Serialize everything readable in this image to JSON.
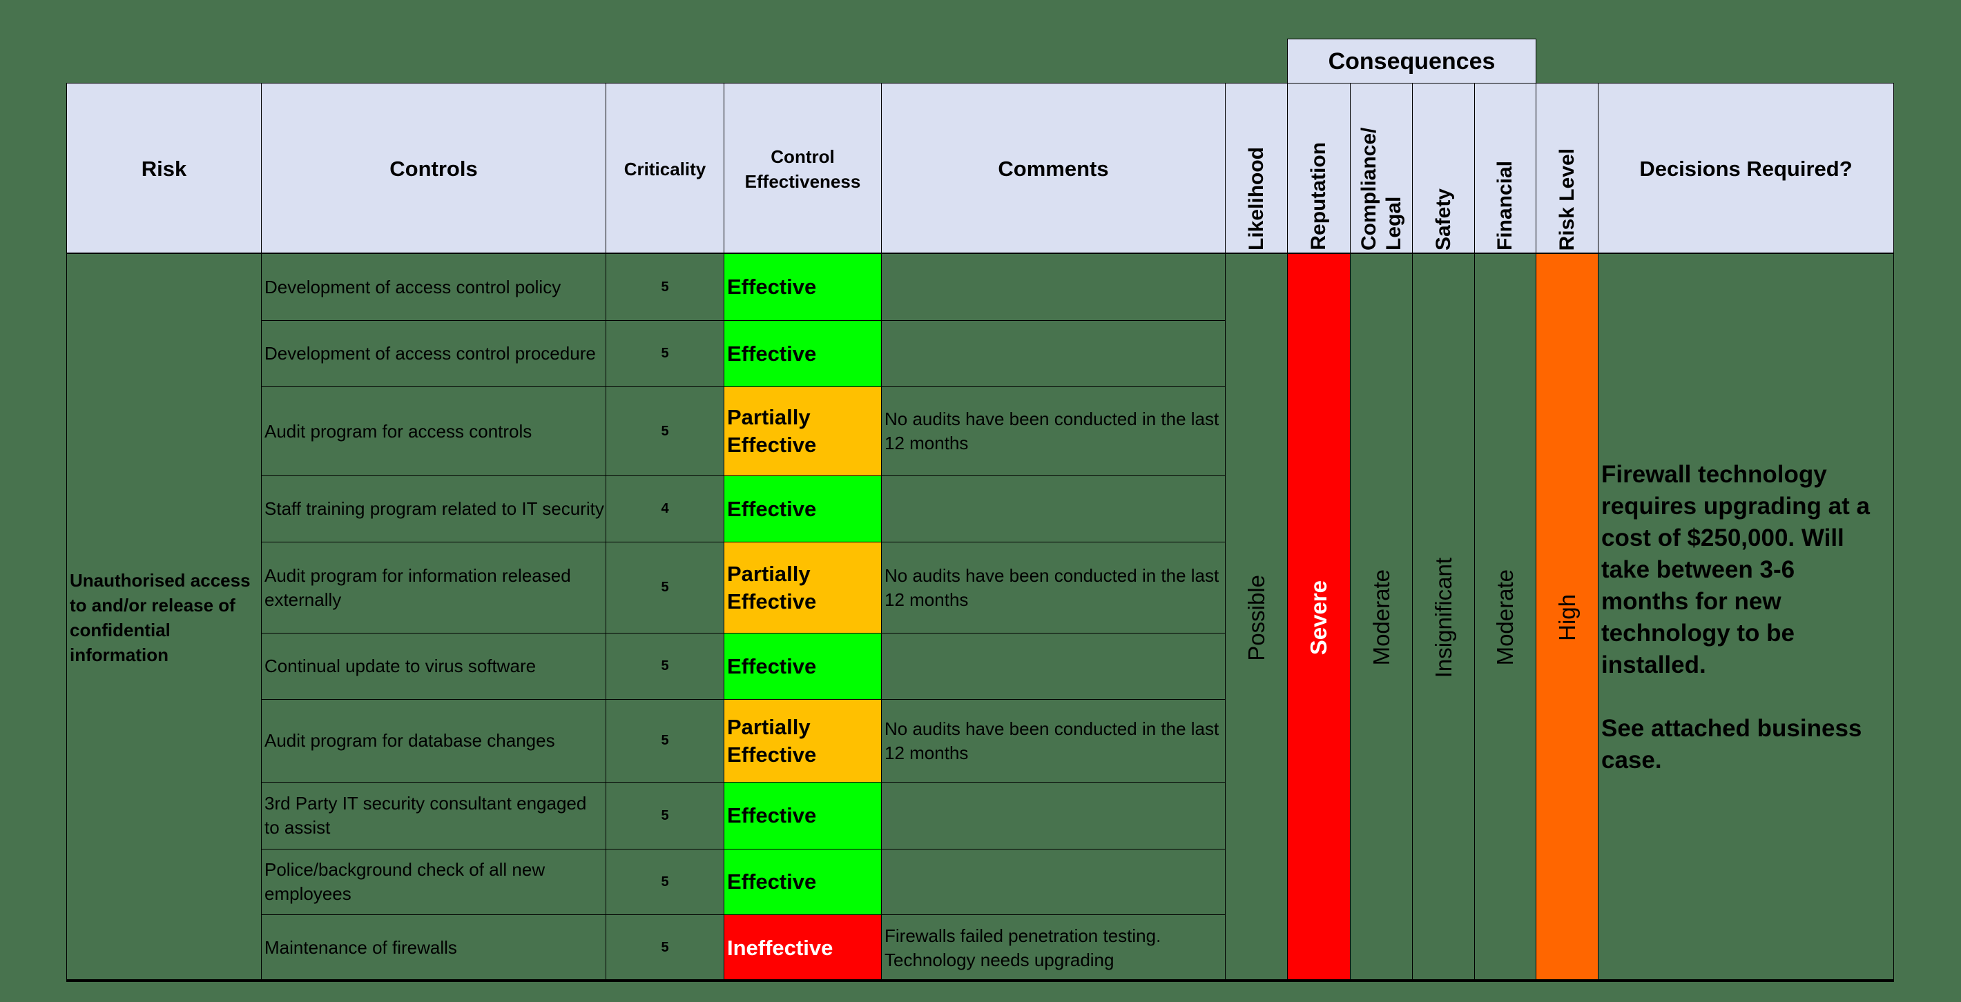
{
  "colors": {
    "background": "#48734E",
    "header_fill": "#DAE0F2",
    "effective": "#00FF00",
    "partially_effective": "#FFC000",
    "ineffective": "#FF0000",
    "severe": "#FF0000",
    "high": "#FF6600"
  },
  "group_header": {
    "label": "Consequences"
  },
  "headers": {
    "risk": "Risk",
    "controls": "Controls",
    "criticality": "Criticality",
    "control_effectiveness": "Control Effectiveness",
    "comments": "Comments",
    "likelihood": "Likelihood",
    "reputation": "Reputation",
    "compliance_legal": "Compliance/ Legal",
    "safety": "Safety",
    "financial": "Financial",
    "risk_level": "Risk Level",
    "decisions_required": "Decisions Required?"
  },
  "risk": {
    "description": "Unauthorised access to and/or release of confidential information",
    "likelihood": "Possible",
    "consequences": {
      "reputation": "Severe",
      "compliance_legal": "Moderate",
      "safety": "Insignificant",
      "financial": "Moderate"
    },
    "risk_level": "High",
    "decision": "Firewall technology requires upgrading at a cost of $250,000. Will take between 3-6 months for new technology to be installed.\n\nSee attached business case."
  },
  "controls": [
    {
      "control": "Development of access control policy",
      "criticality": "5",
      "effectiveness": "Effective",
      "status": "effective",
      "comment": ""
    },
    {
      "control": "Development of access control procedure",
      "criticality": "5",
      "effectiveness": "Effective",
      "status": "effective",
      "comment": ""
    },
    {
      "control": "Audit program for access controls",
      "criticality": "5",
      "effectiveness": "Partially Effective",
      "status": "partial",
      "comment": "No audits have been conducted in the last 12 months"
    },
    {
      "control": "Staff training program related to IT security",
      "criticality": "4",
      "effectiveness": "Effective",
      "status": "effective",
      "comment": ""
    },
    {
      "control": "Audit program for information released externally",
      "criticality": "5",
      "effectiveness": "Partially Effective",
      "status": "partial",
      "comment": "No audits have been conducted in the last 12 months"
    },
    {
      "control": "Continual update to virus software",
      "criticality": "5",
      "effectiveness": "Effective",
      "status": "effective",
      "comment": ""
    },
    {
      "control": "Audit program for database changes",
      "criticality": "5",
      "effectiveness": "Partially Effective",
      "status": "partial",
      "comment": "No audits have been conducted in the last 12 months"
    },
    {
      "control": "3rd Party IT security consultant engaged to assist",
      "criticality": "5",
      "effectiveness": "Effective",
      "status": "effective",
      "comment": ""
    },
    {
      "control": "Police/background check of all new employees",
      "criticality": "5",
      "effectiveness": "Effective",
      "status": "effective",
      "comment": ""
    },
    {
      "control": "Maintenance of firewalls",
      "criticality": "5",
      "effectiveness": "Ineffective",
      "status": "ineffective",
      "comment": "Firewalls failed penetration testing. Technology needs upgrading"
    }
  ]
}
